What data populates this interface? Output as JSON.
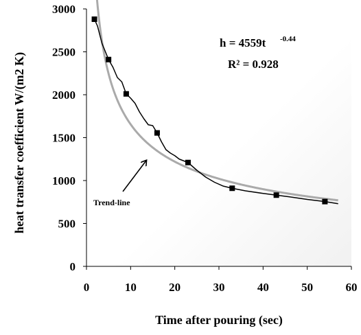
{
  "chart_data": {
    "type": "scatter",
    "xlabel": "Time after pouring (sec)",
    "ylabel": "heat transfer coefficient  W/(m2 K)",
    "xlim": [
      0,
      60
    ],
    "ylim": [
      0,
      3000
    ],
    "xticks": [
      0,
      10,
      20,
      30,
      40,
      50,
      60
    ],
    "yticks": [
      0,
      500,
      1000,
      1500,
      2000,
      2500,
      3000
    ],
    "grid": false,
    "series": [
      {
        "kind": "measured",
        "color": "#000000",
        "marker": "square",
        "markers": [
          {
            "x": 1.8,
            "y": 2880
          },
          {
            "x": 5,
            "y": 2410
          },
          {
            "x": 9,
            "y": 2010
          },
          {
            "x": 16,
            "y": 1555
          },
          {
            "x": 23,
            "y": 1210
          },
          {
            "x": 33,
            "y": 910
          },
          {
            "x": 43,
            "y": 830
          },
          {
            "x": 54,
            "y": 755
          }
        ],
        "line": [
          {
            "x": 1.2,
            "y": 2860
          },
          {
            "x": 1.8,
            "y": 2880
          },
          {
            "x": 2.5,
            "y": 2800
          },
          {
            "x": 3.5,
            "y": 2600
          },
          {
            "x": 5,
            "y": 2410
          },
          {
            "x": 6,
            "y": 2320
          },
          {
            "x": 7,
            "y": 2200
          },
          {
            "x": 8,
            "y": 2150
          },
          {
            "x": 9,
            "y": 2010
          },
          {
            "x": 10,
            "y": 1960
          },
          {
            "x": 11,
            "y": 1900
          },
          {
            "x": 12,
            "y": 1800
          },
          {
            "x": 13,
            "y": 1720
          },
          {
            "x": 14,
            "y": 1650
          },
          {
            "x": 15,
            "y": 1640
          },
          {
            "x": 16,
            "y": 1555
          },
          {
            "x": 17,
            "y": 1450
          },
          {
            "x": 18,
            "y": 1360
          },
          {
            "x": 19,
            "y": 1320
          },
          {
            "x": 20,
            "y": 1290
          },
          {
            "x": 21,
            "y": 1250
          },
          {
            "x": 23,
            "y": 1210
          },
          {
            "x": 25,
            "y": 1120
          },
          {
            "x": 27,
            "y": 1040
          },
          {
            "x": 29,
            "y": 980
          },
          {
            "x": 31,
            "y": 935
          },
          {
            "x": 33,
            "y": 910
          },
          {
            "x": 36,
            "y": 880
          },
          {
            "x": 40,
            "y": 850
          },
          {
            "x": 43,
            "y": 830
          },
          {
            "x": 46,
            "y": 810
          },
          {
            "x": 50,
            "y": 780
          },
          {
            "x": 54,
            "y": 755
          },
          {
            "x": 57,
            "y": 730
          }
        ]
      },
      {
        "kind": "trend",
        "color": "#aaaaaa",
        "coefficient": 4559,
        "exponent": -0.44,
        "x_from": 2.3,
        "x_to": 57
      }
    ],
    "annotations": {
      "equation_main": "h = 4559t",
      "equation_exp": "-0.44",
      "r_squared": "R² = 0.928",
      "trend_label": "Trend-line"
    }
  }
}
